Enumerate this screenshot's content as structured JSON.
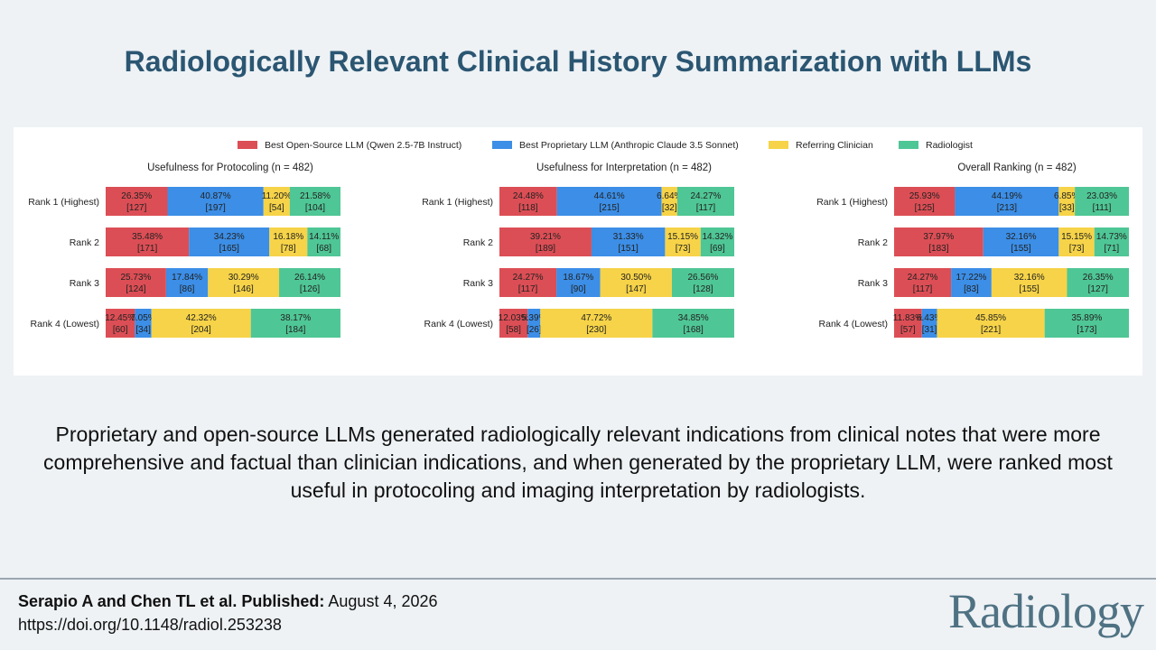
{
  "title": "Radiologically Relevant Clinical History Summarization with LLMs",
  "summary": "Proprietary and open-source LLMs generated radiologically relevant indications from clinical notes that were more comprehensive and factual than clinician indications, and when generated by the proprietary LLM, were ranked most useful in protocoling and imaging interpretation by radiologists.",
  "footer": {
    "authors": "Serapio A and Chen TL et al. Published:",
    "date": "August 4, 2026",
    "doi": "https://doi.org/10.1148/radiol.253238",
    "journal": "Radiology"
  },
  "colors": {
    "open_source": "#dc4e55",
    "proprietary": "#3c8ee6",
    "clinician": "#f6d348",
    "radiologist": "#4fc695"
  },
  "legend": [
    {
      "name": "Best Open-Source LLM (Qwen 2.5-7B Instruct)",
      "color": "#dc4e55"
    },
    {
      "name": "Best Proprietary LLM (Anthropic Claude 3.5 Sonnet)",
      "color": "#3c8ee6"
    },
    {
      "name": "Referring Clinician",
      "color": "#f6d348"
    },
    {
      "name": "Radiologist",
      "color": "#4fc695"
    }
  ],
  "chart_data": [
    {
      "type": "bar",
      "orientation": "horizontal-stacked",
      "title": "Usefulness for Protocoling (n = 482)",
      "categories": [
        "Rank 1 (Highest)",
        "Rank 2",
        "Rank 3",
        "Rank 4 (Lowest)"
      ],
      "xlim": [
        0,
        100
      ],
      "series": [
        {
          "name": "Best Open-Source LLM (Qwen 2.5-7B Instruct)",
          "values": [
            26.35,
            35.48,
            25.73,
            12.45
          ],
          "labels": [
            "26.35%",
            "35.48%",
            "25.73%",
            "12.45%"
          ],
          "counts": [
            "[127]",
            "[171]",
            "[124]",
            "[60]"
          ]
        },
        {
          "name": "Best Proprietary LLM (Anthropic Claude 3.5 Sonnet)",
          "values": [
            40.87,
            34.23,
            17.84,
            7.05
          ],
          "labels": [
            "40.87%",
            "34.23%",
            "17.84%",
            "7.05%"
          ],
          "counts": [
            "[197]",
            "[165]",
            "[86]",
            "[34]"
          ]
        },
        {
          "name": "Referring Clinician",
          "values": [
            11.2,
            16.18,
            30.29,
            42.32
          ],
          "labels": [
            "11.20%",
            "16.18%",
            "30.29%",
            "42.32%"
          ],
          "counts": [
            "[54]",
            "[78]",
            "[146]",
            "[204]"
          ]
        },
        {
          "name": "Radiologist",
          "values": [
            21.58,
            14.11,
            26.14,
            38.17
          ],
          "labels": [
            "21.58%",
            "14.11%",
            "26.14%",
            "38.17%"
          ],
          "counts": [
            "[104]",
            "[68]",
            "[126]",
            "[184]"
          ]
        }
      ]
    },
    {
      "type": "bar",
      "orientation": "horizontal-stacked",
      "title": "Usefulness for Interpretation (n = 482)",
      "categories": [
        "Rank 1 (Highest)",
        "Rank 2",
        "Rank 3",
        "Rank 4 (Lowest)"
      ],
      "xlim": [
        0,
        100
      ],
      "series": [
        {
          "name": "Best Open-Source LLM (Qwen 2.5-7B Instruct)",
          "values": [
            24.48,
            39.21,
            24.27,
            12.03
          ],
          "labels": [
            "24.48%",
            "39.21%",
            "24.27%",
            "12.03%"
          ],
          "counts": [
            "[118]",
            "[189]",
            "[117]",
            "[58]"
          ]
        },
        {
          "name": "Best Proprietary LLM (Anthropic Claude 3.5 Sonnet)",
          "values": [
            44.61,
            31.33,
            18.67,
            5.39
          ],
          "labels": [
            "44.61%",
            "31.33%",
            "18.67%",
            "5.39%"
          ],
          "counts": [
            "[215]",
            "[151]",
            "[90]",
            "[26]"
          ]
        },
        {
          "name": "Referring Clinician",
          "values": [
            6.64,
            15.15,
            30.5,
            47.72
          ],
          "labels": [
            "6.64%",
            "15.15%",
            "30.50%",
            "47.72%"
          ],
          "counts": [
            "[32]",
            "[73]",
            "[147]",
            "[230]"
          ]
        },
        {
          "name": "Radiologist",
          "values": [
            24.27,
            14.32,
            26.56,
            34.85
          ],
          "labels": [
            "24.27%",
            "14.32%",
            "26.56%",
            "34.85%"
          ],
          "counts": [
            "[117]",
            "[69]",
            "[128]",
            "[168]"
          ]
        }
      ]
    },
    {
      "type": "bar",
      "orientation": "horizontal-stacked",
      "title": "Overall Ranking (n = 482)",
      "categories": [
        "Rank 1 (Highest)",
        "Rank 2",
        "Rank 3",
        "Rank 4 (Lowest)"
      ],
      "xlim": [
        0,
        100
      ],
      "series": [
        {
          "name": "Best Open-Source LLM (Qwen 2.5-7B Instruct)",
          "values": [
            25.93,
            37.97,
            24.27,
            11.83
          ],
          "labels": [
            "25.93%",
            "37.97%",
            "24.27%",
            "11.83%"
          ],
          "counts": [
            "[125]",
            "[183]",
            "[117]",
            "[57]"
          ]
        },
        {
          "name": "Best Proprietary LLM (Anthropic Claude 3.5 Sonnet)",
          "values": [
            44.19,
            32.16,
            17.22,
            6.43
          ],
          "labels": [
            "44.19%",
            "32.16%",
            "17.22%",
            "6.43%"
          ],
          "counts": [
            "[213]",
            "[155]",
            "[83]",
            "[31]"
          ]
        },
        {
          "name": "Referring Clinician",
          "values": [
            6.85,
            15.15,
            32.16,
            45.85
          ],
          "labels": [
            "6.85%",
            "15.15%",
            "32.16%",
            "45.85%"
          ],
          "counts": [
            "[33]",
            "[73]",
            "[155]",
            "[221]"
          ]
        },
        {
          "name": "Radiologist",
          "values": [
            23.03,
            14.73,
            26.35,
            35.89
          ],
          "labels": [
            "23.03%",
            "14.73%",
            "26.35%",
            "35.89%"
          ],
          "counts": [
            "[111]",
            "[71]",
            "[127]",
            "[173]"
          ]
        }
      ]
    }
  ]
}
